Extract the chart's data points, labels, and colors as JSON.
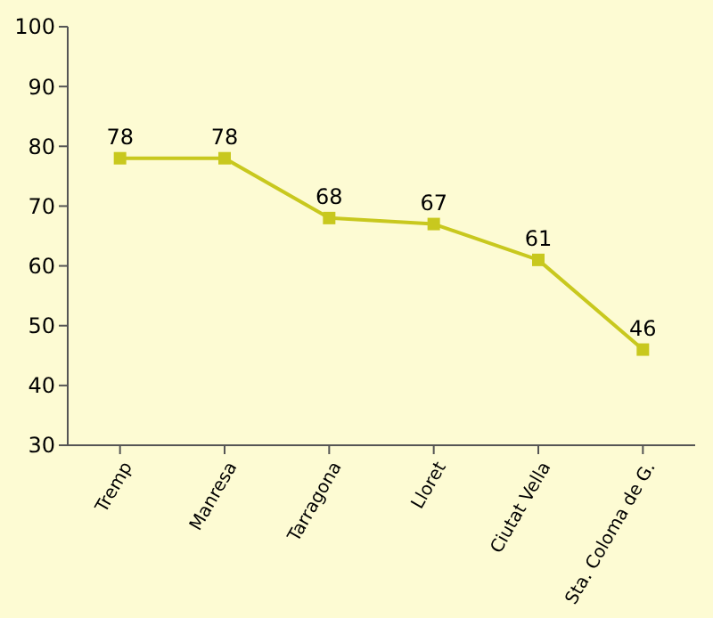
{
  "chart_data": {
    "type": "line",
    "categories": [
      "Tremp",
      "Manresa",
      "Tarragona",
      "Lloret",
      "Ciutat Vella",
      "Sta. Coloma de G."
    ],
    "series": [
      {
        "color": "#c8c81e",
        "values": [
          78,
          78,
          68,
          67,
          61,
          46
        ]
      }
    ],
    "ylim": [
      30,
      100
    ],
    "yticks": [
      30,
      40,
      50,
      60,
      70,
      80,
      90,
      100
    ],
    "marker": "square",
    "data_labels": true
  }
}
